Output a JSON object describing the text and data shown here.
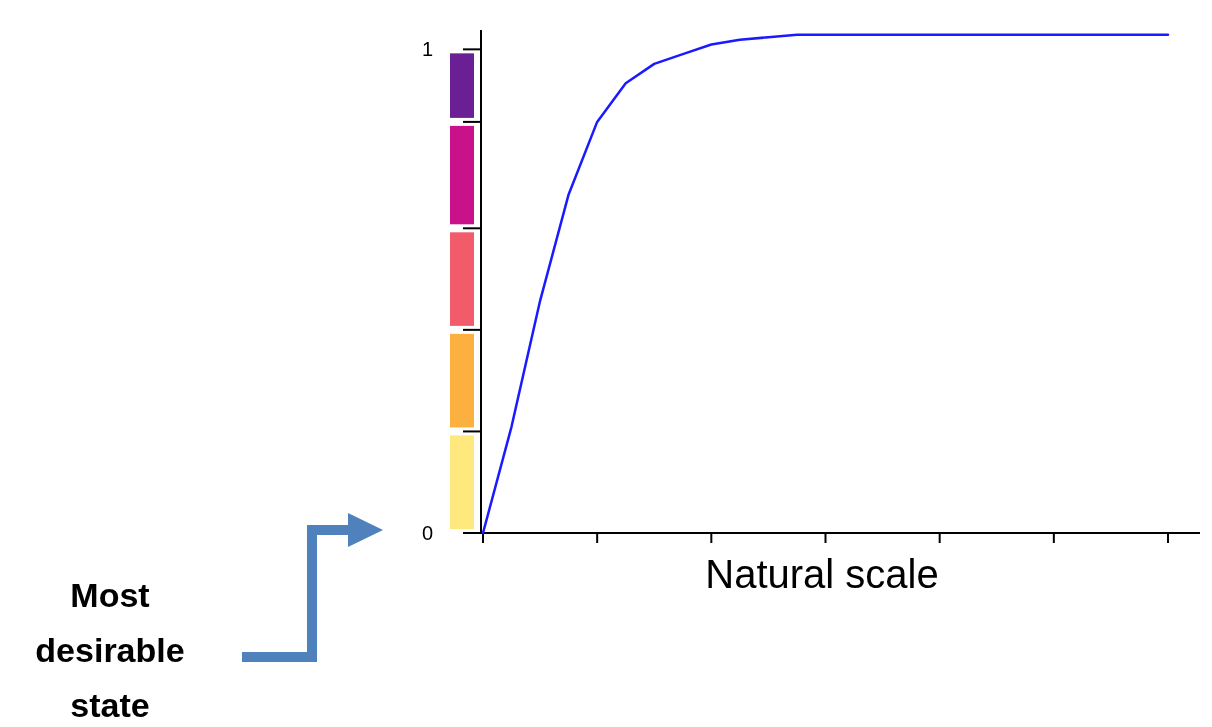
{
  "chart_data": {
    "type": "line",
    "xlabel": "Natural scale",
    "categories": [
      null,
      null,
      null,
      null,
      null,
      null,
      null,
      null,
      null,
      null,
      null,
      null,
      null,
      null,
      null,
      null,
      null,
      null,
      null,
      null,
      null,
      null,
      null,
      null,
      null
    ],
    "series": [
      {
        "color": "#1a1aff",
        "values": [
          0,
          0.22,
          0.48,
          0.7,
          0.85,
          0.93,
          0.97,
          0.99,
          1.01,
          1.02,
          1.025,
          1.03,
          1.03,
          1.03,
          1.03,
          1.03,
          1.03,
          1.03,
          1.03,
          1.03,
          1.03,
          1.03,
          1.03,
          1.03,
          1.03
        ]
      }
    ],
    "ylim": [
      0,
      1.04
    ],
    "yticks": [
      0,
      1
    ],
    "annotations": [
      "Most desirable state"
    ],
    "marker": "none",
    "line_style": "solid"
  }
}
